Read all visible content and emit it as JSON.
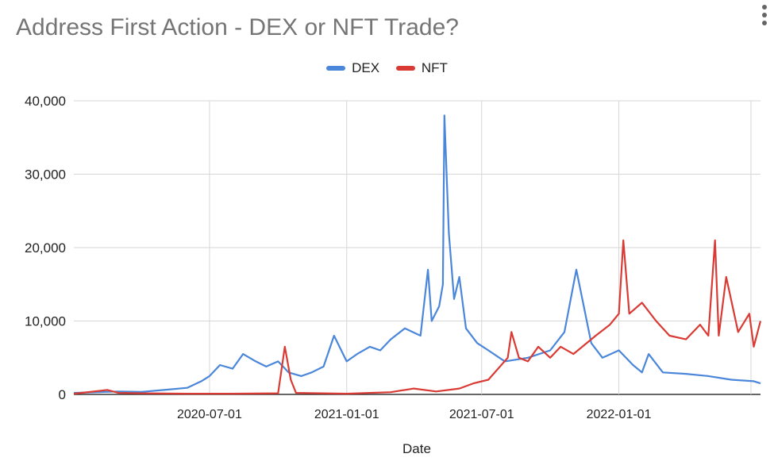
{
  "chart_data": {
    "type": "line",
    "title": "Address First Action - DEX or NFT Trade?",
    "xlabel": "Date",
    "ylabel": "",
    "ylim": [
      0,
      40000
    ],
    "xlim": [
      "2020-01-01",
      "2022-07-10"
    ],
    "yticks": [
      0,
      10000,
      20000,
      30000,
      40000
    ],
    "ytick_labels": [
      "0",
      "10,000",
      "20,000",
      "30,000",
      "40,000"
    ],
    "xticks": [
      "2020-07-01",
      "2021-01-01",
      "2021-07-01",
      "2022-01-01"
    ],
    "xtick_labels": [
      "2020-07-01",
      "2021-01-01",
      "2021-07-01",
      "2022-01-01"
    ],
    "grid": true,
    "legend_position": "top",
    "series": [
      {
        "name": "DEX",
        "color": "#4a86d9",
        "points": [
          [
            "2020-01-01",
            200
          ],
          [
            "2020-02-01",
            300
          ],
          [
            "2020-03-01",
            400
          ],
          [
            "2020-04-01",
            350
          ],
          [
            "2020-05-01",
            600
          ],
          [
            "2020-06-01",
            900
          ],
          [
            "2020-06-20",
            1800
          ],
          [
            "2020-07-01",
            2500
          ],
          [
            "2020-07-15",
            4000
          ],
          [
            "2020-08-01",
            3500
          ],
          [
            "2020-08-15",
            5500
          ],
          [
            "2020-09-01",
            4500
          ],
          [
            "2020-09-15",
            3800
          ],
          [
            "2020-10-01",
            4500
          ],
          [
            "2020-10-15",
            3000
          ],
          [
            "2020-11-01",
            2500
          ],
          [
            "2020-11-15",
            3000
          ],
          [
            "2020-12-01",
            3800
          ],
          [
            "2020-12-15",
            8000
          ],
          [
            "2021-01-01",
            4500
          ],
          [
            "2021-01-15",
            5500
          ],
          [
            "2021-02-01",
            6500
          ],
          [
            "2021-02-15",
            6000
          ],
          [
            "2021-03-01",
            7500
          ],
          [
            "2021-03-20",
            9000
          ],
          [
            "2021-04-10",
            8000
          ],
          [
            "2021-04-20",
            17000
          ],
          [
            "2021-04-25",
            10000
          ],
          [
            "2021-05-05",
            12000
          ],
          [
            "2021-05-10",
            15000
          ],
          [
            "2021-05-12",
            38000
          ],
          [
            "2021-05-18",
            22000
          ],
          [
            "2021-05-25",
            13000
          ],
          [
            "2021-06-01",
            16000
          ],
          [
            "2021-06-10",
            9000
          ],
          [
            "2021-06-25",
            7000
          ],
          [
            "2021-07-10",
            6000
          ],
          [
            "2021-08-01",
            4500
          ],
          [
            "2021-09-01",
            5000
          ],
          [
            "2021-10-01",
            6000
          ],
          [
            "2021-10-20",
            8500
          ],
          [
            "2021-11-05",
            17000
          ],
          [
            "2021-11-15",
            12000
          ],
          [
            "2021-11-25",
            7000
          ],
          [
            "2021-12-10",
            5000
          ],
          [
            "2022-01-01",
            6000
          ],
          [
            "2022-01-20",
            4000
          ],
          [
            "2022-02-01",
            3000
          ],
          [
            "2022-02-10",
            5500
          ],
          [
            "2022-03-01",
            3000
          ],
          [
            "2022-04-01",
            2800
          ],
          [
            "2022-05-01",
            2500
          ],
          [
            "2022-06-01",
            2000
          ],
          [
            "2022-07-01",
            1800
          ],
          [
            "2022-07-10",
            1500
          ]
        ]
      },
      {
        "name": "NFT",
        "color": "#d93a33",
        "points": [
          [
            "2020-01-01",
            100
          ],
          [
            "2020-02-15",
            600
          ],
          [
            "2020-03-01",
            200
          ],
          [
            "2020-04-01",
            150
          ],
          [
            "2020-06-01",
            100
          ],
          [
            "2020-08-01",
            100
          ],
          [
            "2020-10-01",
            150
          ],
          [
            "2020-10-10",
            6500
          ],
          [
            "2020-10-18",
            2000
          ],
          [
            "2020-10-25",
            200
          ],
          [
            "2021-01-01",
            100
          ],
          [
            "2021-03-01",
            300
          ],
          [
            "2021-04-01",
            800
          ],
          [
            "2021-05-01",
            400
          ],
          [
            "2021-06-01",
            800
          ],
          [
            "2021-06-20",
            1500
          ],
          [
            "2021-07-10",
            2000
          ],
          [
            "2021-08-05",
            5000
          ],
          [
            "2021-08-10",
            8500
          ],
          [
            "2021-08-20",
            5000
          ],
          [
            "2021-09-01",
            4500
          ],
          [
            "2021-09-15",
            6500
          ],
          [
            "2021-10-01",
            5000
          ],
          [
            "2021-10-15",
            6500
          ],
          [
            "2021-11-01",
            5500
          ],
          [
            "2021-12-01",
            8000
          ],
          [
            "2021-12-20",
            9500
          ],
          [
            "2022-01-01",
            11000
          ],
          [
            "2022-01-07",
            21000
          ],
          [
            "2022-01-15",
            11000
          ],
          [
            "2022-02-01",
            12500
          ],
          [
            "2022-02-20",
            10000
          ],
          [
            "2022-03-10",
            8000
          ],
          [
            "2022-04-01",
            7500
          ],
          [
            "2022-04-20",
            9500
          ],
          [
            "2022-05-01",
            8000
          ],
          [
            "2022-05-10",
            21000
          ],
          [
            "2022-05-15",
            8000
          ],
          [
            "2022-05-25",
            16000
          ],
          [
            "2022-06-10",
            8500
          ],
          [
            "2022-06-25",
            11000
          ],
          [
            "2022-07-01",
            6500
          ],
          [
            "2022-07-10",
            10000
          ]
        ]
      }
    ]
  }
}
